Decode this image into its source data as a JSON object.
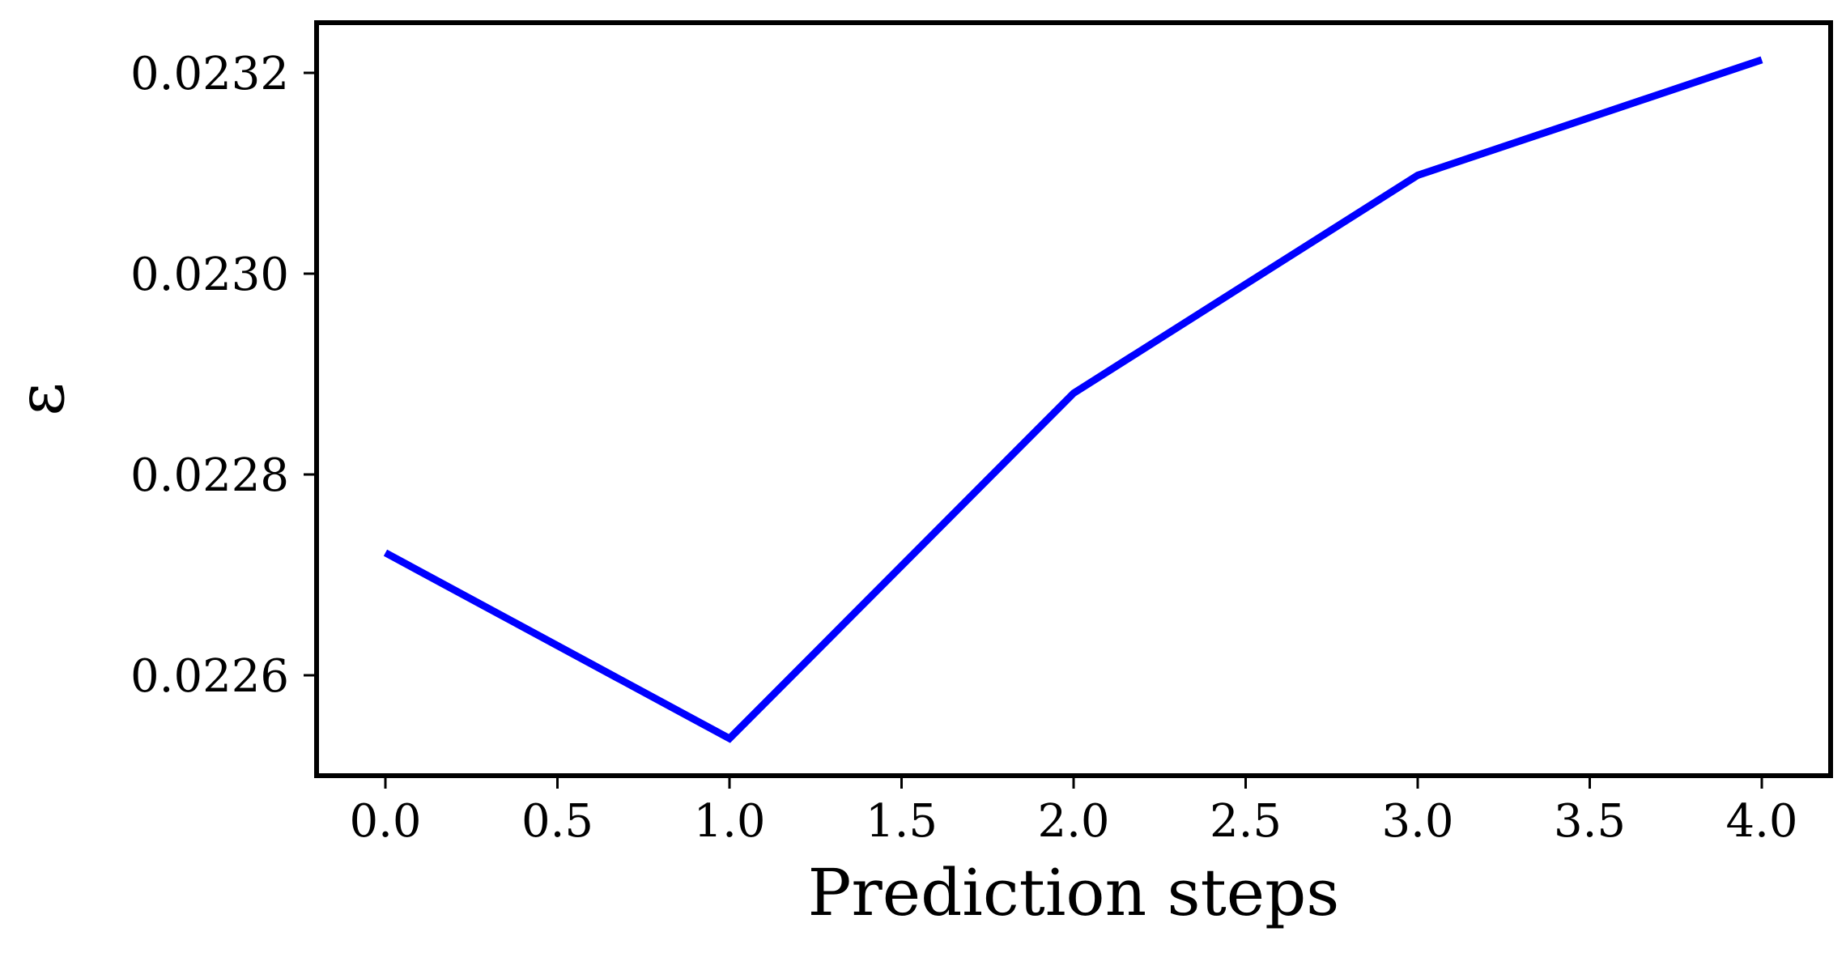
{
  "chart_data": {
    "type": "line",
    "xlabel": "Prediction steps",
    "ylabel": "ε",
    "xlim": [
      -0.2,
      4.2
    ],
    "ylim": [
      0.0225,
      0.02325
    ],
    "xticks": [
      "0.0",
      "0.5",
      "1.0",
      "1.5",
      "2.0",
      "2.5",
      "3.0",
      "3.5",
      "4.0"
    ],
    "yticks": [
      "0.0226",
      "0.0228",
      "0.0230",
      "0.0232"
    ],
    "grid": false,
    "series": [
      {
        "color": "#0000ff",
        "x": [
          0,
          1,
          2,
          3,
          4
        ],
        "y": [
          0.022722,
          0.022537,
          0.022881,
          0.023098,
          0.023213
        ]
      }
    ]
  }
}
